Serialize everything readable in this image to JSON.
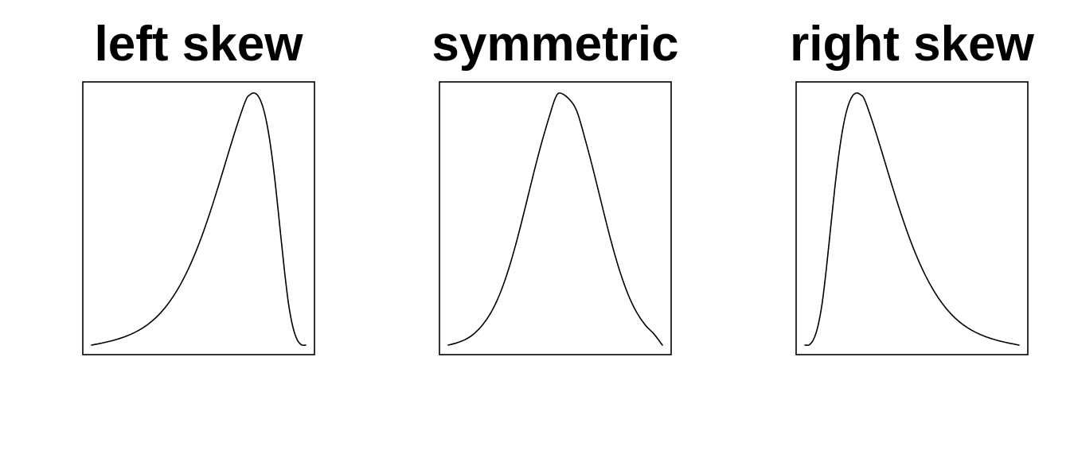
{
  "chart_data": [
    {
      "type": "line",
      "title": "left skew",
      "xlabel": "",
      "ylabel": "",
      "axes_shown": false,
      "box": true,
      "grid": false,
      "series": [
        {
          "x": [
            0.0,
            0.04,
            0.08,
            0.12,
            0.16,
            0.2,
            0.24,
            0.28,
            0.32,
            0.36,
            0.4,
            0.44,
            0.48,
            0.52,
            0.56,
            0.6,
            0.64,
            0.68,
            0.72,
            0.74,
            0.76,
            0.78,
            0.8,
            0.82,
            0.84,
            0.86,
            0.88,
            0.9,
            0.92,
            0.94,
            0.96,
            0.98,
            1.0
          ],
          "y": [
            0.0,
            0.0065,
            0.0142,
            0.0233,
            0.0347,
            0.0494,
            0.0686,
            0.0935,
            0.1257,
            0.1667,
            0.218,
            0.2809,
            0.3562,
            0.4441,
            0.5437,
            0.6522,
            0.7649,
            0.8744,
            0.9712,
            0.9935,
            1.0,
            0.9855,
            0.9446,
            0.8725,
            0.765,
            0.6255,
            0.4632,
            0.3012,
            0.1623,
            0.072,
            0.0216,
            0.001,
            0.0
          ]
        }
      ]
    },
    {
      "type": "line",
      "title": "symmetric",
      "xlabel": "",
      "ylabel": "",
      "axes_shown": false,
      "box": true,
      "grid": false,
      "series": [
        {
          "x": [
            0.0,
            0.04,
            0.08,
            0.12,
            0.16,
            0.2,
            0.24,
            0.28,
            0.32,
            0.36,
            0.4,
            0.44,
            0.48,
            0.5,
            0.52,
            0.56,
            0.6,
            0.64,
            0.68,
            0.72,
            0.76,
            0.8,
            0.84,
            0.88,
            0.92,
            0.96,
            1.0
          ],
          "y": [
            0.0,
            0.0089,
            0.0222,
            0.0447,
            0.0795,
            0.1296,
            0.2007,
            0.2961,
            0.4138,
            0.5475,
            0.6856,
            0.8144,
            0.9291,
            0.9796,
            1.0,
            0.9796,
            0.9291,
            0.8144,
            0.6856,
            0.5475,
            0.4138,
            0.2961,
            0.2007,
            0.1296,
            0.0795,
            0.0447,
            0.0
          ]
        }
      ]
    },
    {
      "type": "line",
      "title": "right skew",
      "xlabel": "",
      "ylabel": "",
      "axes_shown": false,
      "box": true,
      "grid": false,
      "series": [
        {
          "x": [
            0.0,
            0.02,
            0.04,
            0.06,
            0.08,
            0.1,
            0.12,
            0.14,
            0.16,
            0.18,
            0.2,
            0.22,
            0.24,
            0.26,
            0.28,
            0.32,
            0.36,
            0.4,
            0.44,
            0.48,
            0.52,
            0.56,
            0.6,
            0.64,
            0.68,
            0.72,
            0.76,
            0.8,
            0.84,
            0.88,
            0.92,
            0.96,
            1.0
          ],
          "y": [
            0.0,
            0.001,
            0.0216,
            0.072,
            0.1623,
            0.3012,
            0.4632,
            0.6255,
            0.765,
            0.8725,
            0.9446,
            0.9855,
            1.0,
            0.9935,
            0.9712,
            0.8744,
            0.7649,
            0.6522,
            0.5437,
            0.4441,
            0.3562,
            0.2809,
            0.218,
            0.1667,
            0.1257,
            0.0935,
            0.0686,
            0.0494,
            0.0347,
            0.0233,
            0.0142,
            0.0065,
            0.0
          ]
        }
      ]
    }
  ]
}
